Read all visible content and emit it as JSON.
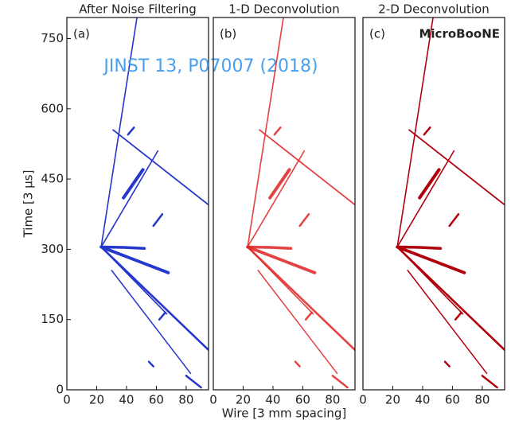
{
  "chart_data": [
    {
      "type": "image",
      "title": "After Noise Filtering",
      "panel_label": "(a)",
      "color": "#2438d0",
      "xlim": [
        0,
        95
      ],
      "xticks": [
        0,
        20,
        40,
        60,
        80
      ],
      "ylim": [
        0,
        795
      ],
      "yticks": [
        0,
        150,
        300,
        450,
        600,
        750
      ],
      "y_label": "Time [3 μs]",
      "annotation": "JINST 13, P07007 (2018)"
    },
    {
      "type": "image",
      "title": "1-D Deconvolution",
      "panel_label": "(b)",
      "color": "#e02828",
      "xlim": [
        0,
        95
      ],
      "xticks": [
        0,
        20,
        40,
        60,
        80
      ],
      "ylim": [
        0,
        795
      ],
      "x_label": "Wire [3 mm spacing]"
    },
    {
      "type": "image",
      "title": "2-D Deconvolution",
      "panel_label": "(c)",
      "color": "#b0000c",
      "xlim": [
        0,
        95
      ],
      "xticks": [
        0,
        20,
        40,
        60,
        80
      ],
      "ylim": [
        0,
        795
      ],
      "experiment": "MicroBooNE"
    }
  ]
}
